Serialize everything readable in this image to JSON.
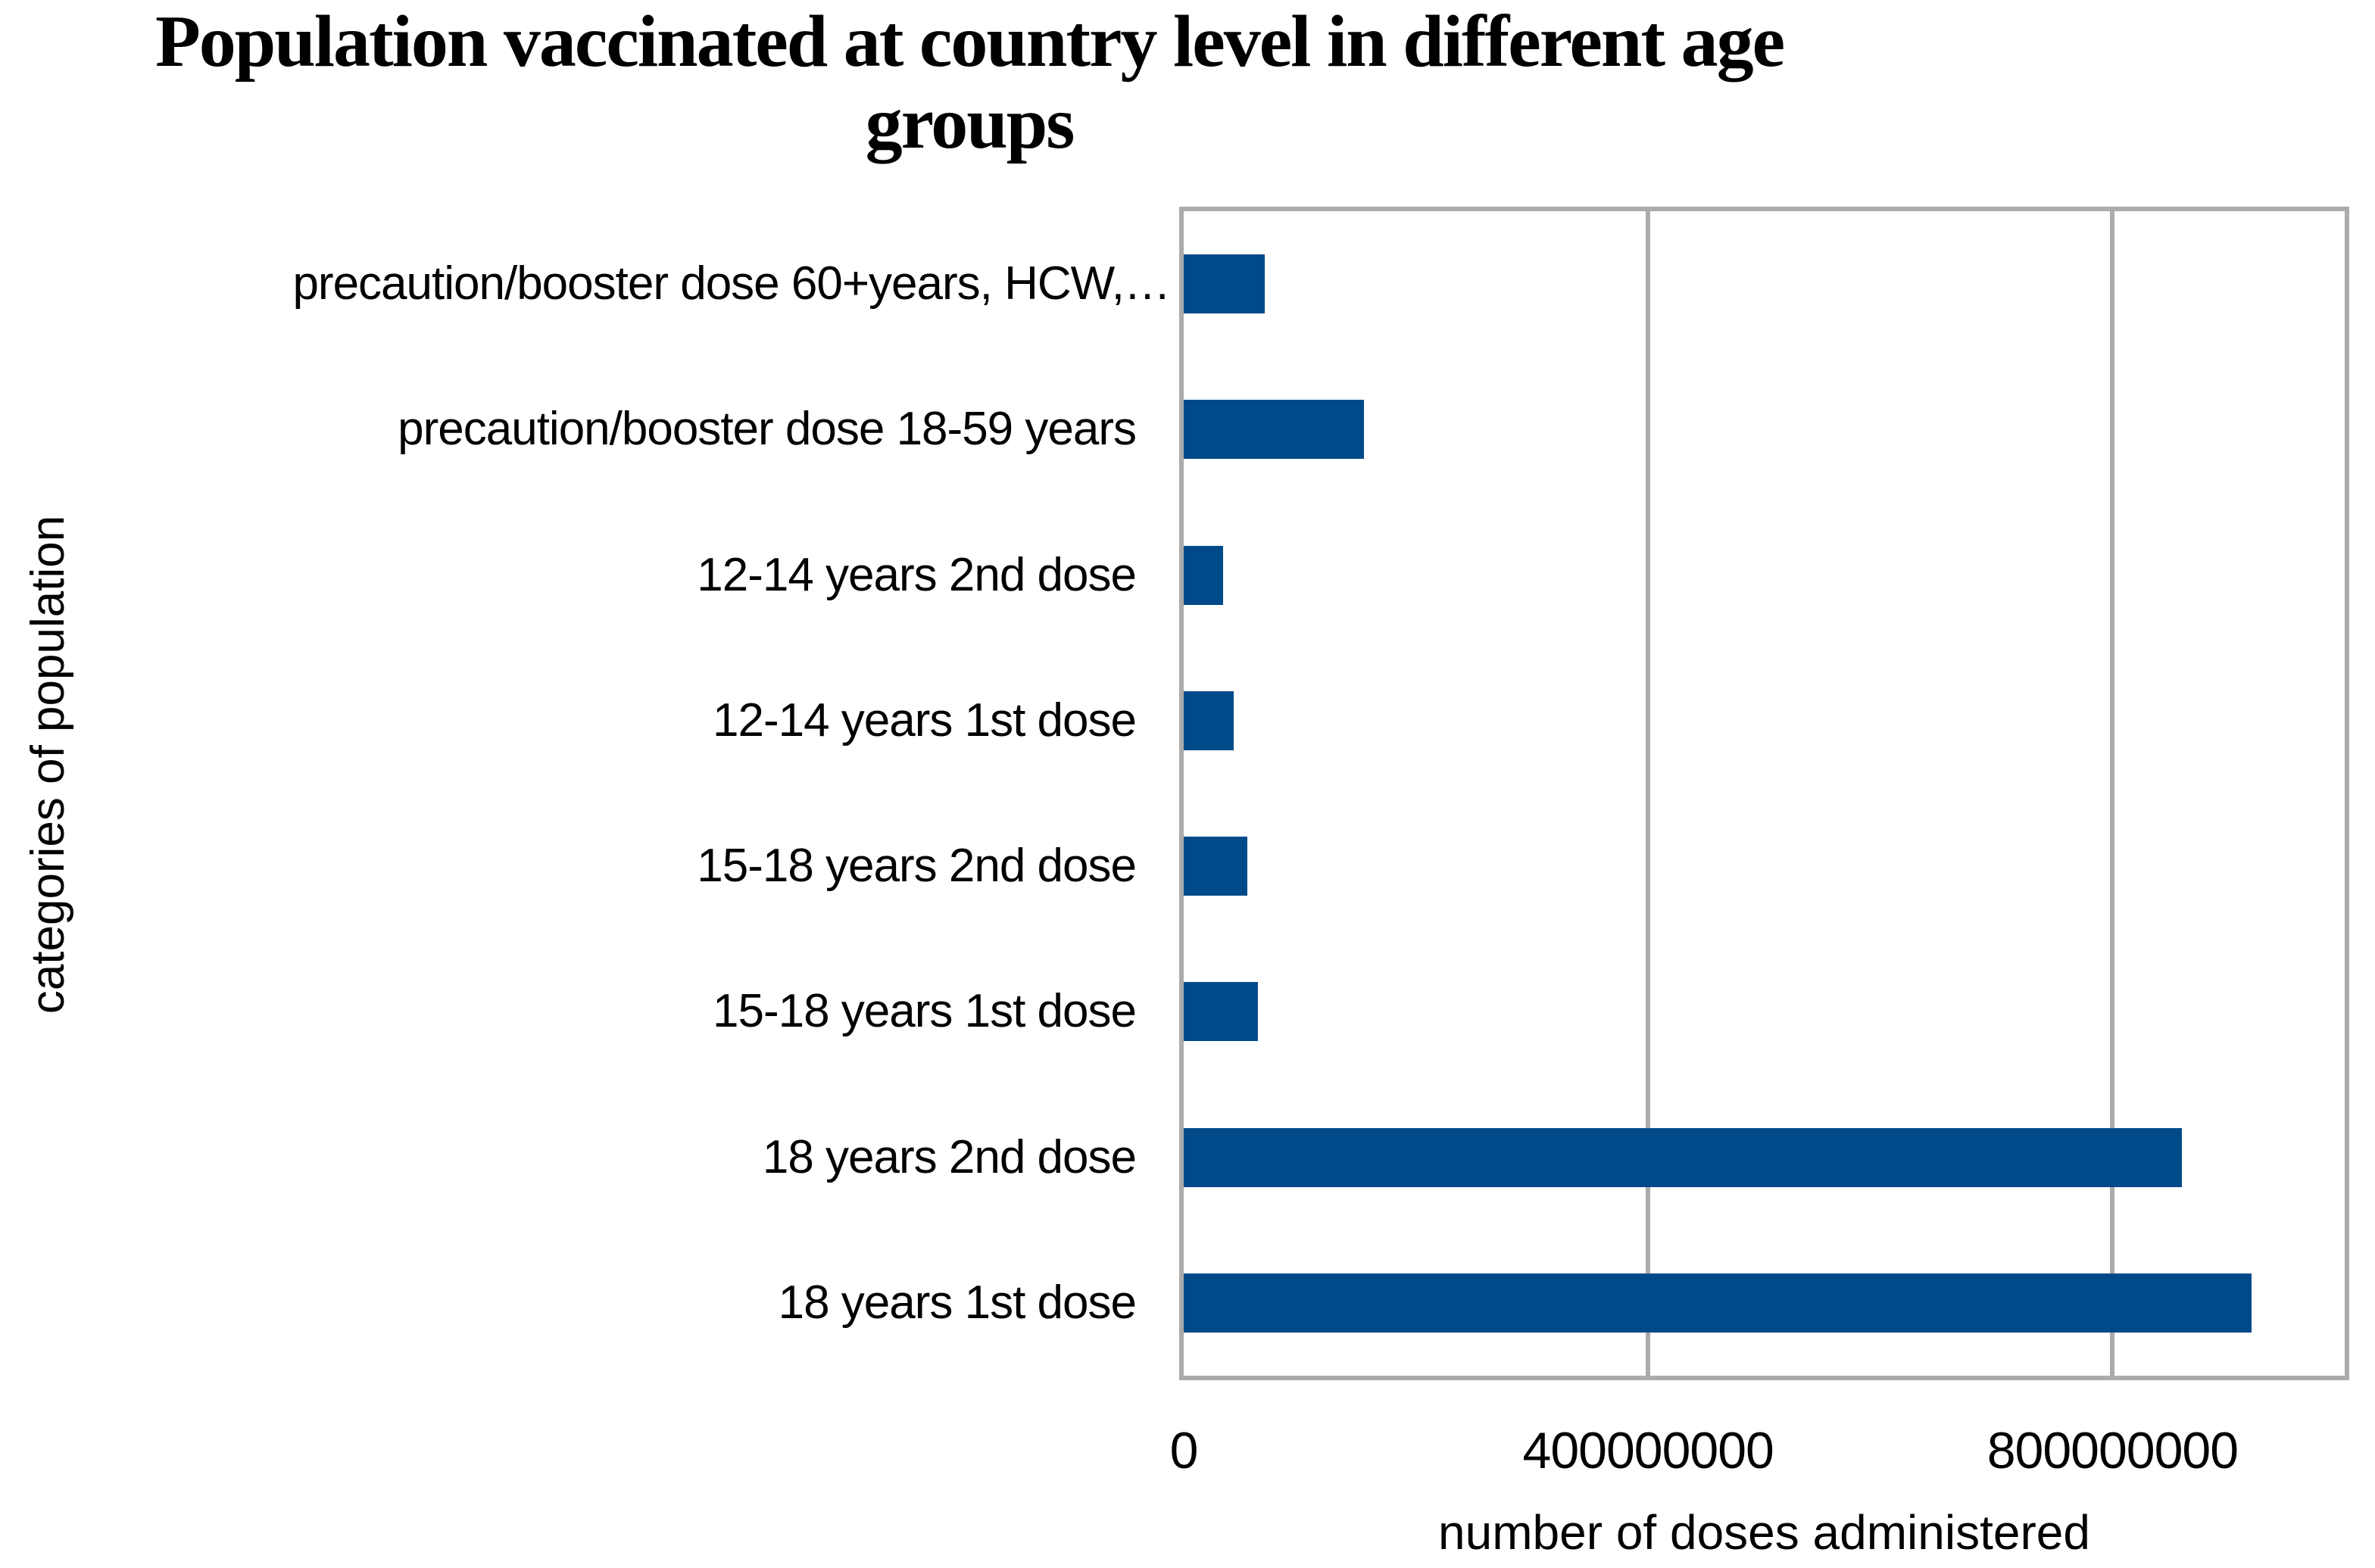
{
  "title": {
    "line1": "Population vaccinated at country level in different age",
    "line2": "groups"
  },
  "chart_data": {
    "type": "bar",
    "orientation": "horizontal",
    "title": "Population vaccinated at country level in different age groups",
    "xlabel": "number of doses administered",
    "ylabel": "categories of population",
    "categories": [
      "precaution/booster dose 60+years, HCW,…",
      "precaution/booster dose 18-59 years",
      "12-14 years 2nd dose",
      "12-14 years 1st dose",
      "15-18 years 2nd dose",
      "15-18 years 1st dose",
      "18 years 2nd dose",
      "18 years 1st dose"
    ],
    "values": [
      70000000,
      155000000,
      34000000,
      43000000,
      55000000,
      64000000,
      860000000,
      920000000
    ],
    "x_ticks": [
      {
        "value": 0,
        "label": "0"
      },
      {
        "value": 400000000,
        "label": "400000000"
      },
      {
        "value": 800000000,
        "label": "800000000"
      }
    ],
    "xlim": [
      0,
      1000000000
    ],
    "grid": true,
    "legend": "none",
    "bar_color": "#004a8a",
    "grid_color": "#ababab",
    "text_color": "#000000",
    "background_color": "#ffffff"
  }
}
